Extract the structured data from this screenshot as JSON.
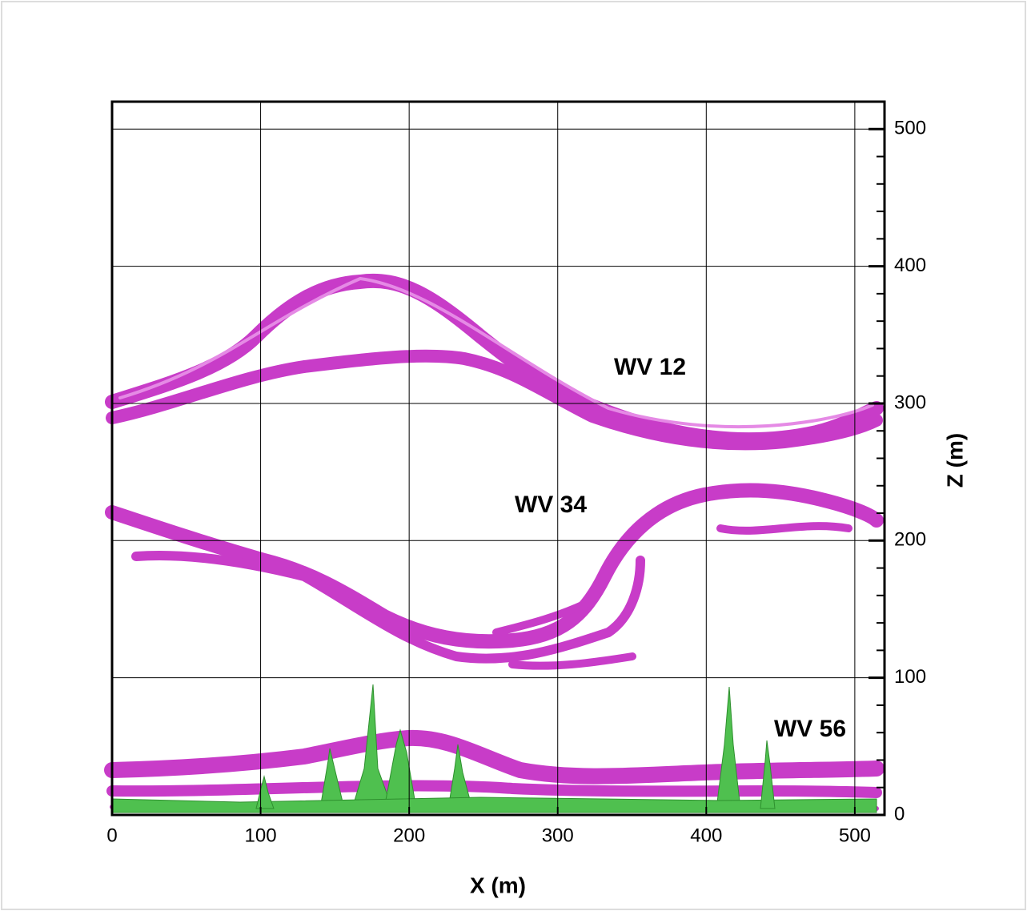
{
  "chart_data": {
    "type": "isosurface",
    "xlabel": "X (m)",
    "ylabel": "Z (m)",
    "xlim": [
      0,
      520
    ],
    "ylim": [
      0,
      520
    ],
    "xticks": [
      0,
      100,
      200,
      300,
      400,
      500
    ],
    "yticks": [
      0,
      100,
      200,
      300,
      400,
      500
    ],
    "yminorticks": [
      20,
      40,
      60,
      80,
      120,
      140,
      160,
      180,
      220,
      240,
      260,
      280,
      320,
      340,
      360,
      380,
      420,
      440,
      460,
      480
    ],
    "grid": true,
    "annotations": [
      "WV 12",
      "WV 34",
      "WV 56"
    ]
  }
}
